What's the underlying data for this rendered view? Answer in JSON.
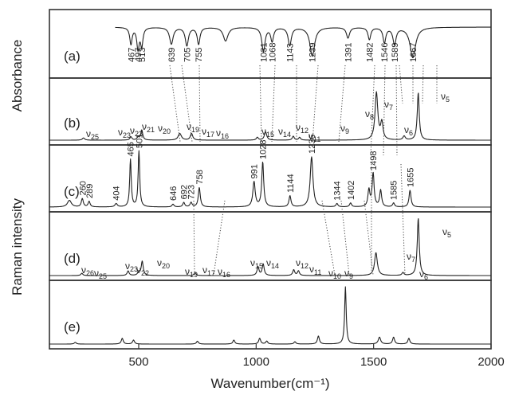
{
  "chart_data": {
    "type": "line",
    "xlabel": "Wavenumber(cm⁻¹)",
    "ylabel_top": "Absorbance",
    "ylabel_bottom": "Raman intensity",
    "xlim": [
      120,
      2000
    ],
    "xticks": [
      500,
      1000,
      1500,
      2000
    ],
    "panels": [
      {
        "id": "a",
        "label": "(a)",
        "kind": "absorbance",
        "peaks": [
          {
            "x": 467,
            "h": 0.55,
            "w": 6,
            "label": "467"
          },
          {
            "x": 497,
            "h": 0.7,
            "w": 6,
            "label": "497"
          },
          {
            "x": 513,
            "h": 0.6,
            "w": 6,
            "label": "513"
          },
          {
            "x": 639,
            "h": 0.55,
            "w": 9,
            "label": "639"
          },
          {
            "x": 705,
            "h": 0.6,
            "w": 8,
            "label": "705"
          },
          {
            "x": 755,
            "h": 0.55,
            "w": 7,
            "label": "755"
          },
          {
            "x": 870,
            "h": 0.45,
            "w": 12,
            "label": ""
          },
          {
            "x": 1031,
            "h": 0.8,
            "w": 8,
            "label": "1031"
          },
          {
            "x": 1068,
            "h": 0.45,
            "w": 7,
            "label": "1068"
          },
          {
            "x": 1143,
            "h": 0.6,
            "w": 8,
            "label": "1143"
          },
          {
            "x": 1239,
            "h": 0.95,
            "w": 12,
            "label": "1239"
          },
          {
            "x": 1391,
            "h": 0.35,
            "w": 8,
            "label": "1391"
          },
          {
            "x": 1482,
            "h": 0.4,
            "w": 7,
            "label": "1482"
          },
          {
            "x": 1546,
            "h": 0.5,
            "w": 7,
            "label": "1546"
          },
          {
            "x": 1589,
            "h": 0.55,
            "w": 8,
            "label": "1589"
          },
          {
            "x": 1667,
            "h": 1.0,
            "w": 14,
            "label": "1667"
          }
        ]
      },
      {
        "id": "b",
        "label": "(b)",
        "kind": "raman",
        "peaks": [
          {
            "x": 265,
            "h": 0.04,
            "w": 6
          },
          {
            "x": 467,
            "h": 0.06,
            "w": 5
          },
          {
            "x": 497,
            "h": 0.05,
            "w": 5
          },
          {
            "x": 513,
            "h": 0.18,
            "w": 5
          },
          {
            "x": 675,
            "h": 0.12,
            "w": 8
          },
          {
            "x": 725,
            "h": 0.12,
            "w": 6
          },
          {
            "x": 1005,
            "h": 0.05,
            "w": 5
          },
          {
            "x": 1040,
            "h": 0.15,
            "w": 6
          },
          {
            "x": 1158,
            "h": 0.07,
            "w": 5
          },
          {
            "x": 1185,
            "h": 0.05,
            "w": 5
          },
          {
            "x": 1512,
            "h": 0.85,
            "w": 7
          },
          {
            "x": 1535,
            "h": 0.3,
            "w": 6
          },
          {
            "x": 1630,
            "h": 0.07,
            "w": 6
          },
          {
            "x": 1690,
            "h": 0.85,
            "w": 5
          }
        ],
        "annotations": [
          "ν25",
          "ν23",
          "ν22",
          "ν21",
          "ν20",
          "ν19",
          "ν17",
          "ν16",
          "ν15",
          "ν14",
          "ν12",
          "ν11",
          "ν9",
          "ν8",
          "ν7",
          "ν6",
          "ν5"
        ]
      },
      {
        "id": "c",
        "label": "(c)",
        "kind": "raman",
        "peaks": [
          {
            "x": 205,
            "h": 0.12,
            "w": 10,
            "label": ""
          },
          {
            "x": 260,
            "h": 0.15,
            "w": 5,
            "label": "260"
          },
          {
            "x": 289,
            "h": 0.1,
            "w": 5,
            "label": "289"
          },
          {
            "x": 404,
            "h": 0.06,
            "w": 6,
            "label": "404"
          },
          {
            "x": 465,
            "h": 0.85,
            "w": 4,
            "label": "465"
          },
          {
            "x": 501,
            "h": 1.0,
            "w": 4,
            "label": "501"
          },
          {
            "x": 646,
            "h": 0.05,
            "w": 5,
            "label": "646"
          },
          {
            "x": 692,
            "h": 0.08,
            "w": 5,
            "label": "692"
          },
          {
            "x": 723,
            "h": 0.08,
            "w": 5,
            "label": "723"
          },
          {
            "x": 758,
            "h": 0.35,
            "w": 5,
            "label": "758"
          },
          {
            "x": 991,
            "h": 0.45,
            "w": 6,
            "label": "991"
          },
          {
            "x": 1028,
            "h": 0.8,
            "w": 5,
            "label": "1028"
          },
          {
            "x": 1144,
            "h": 0.2,
            "w": 5,
            "label": "1144"
          },
          {
            "x": 1236,
            "h": 0.9,
            "w": 7,
            "label": "1236"
          },
          {
            "x": 1344,
            "h": 0.06,
            "w": 5,
            "label": "1344"
          },
          {
            "x": 1402,
            "h": 0.07,
            "w": 5,
            "label": "1402"
          },
          {
            "x": 1480,
            "h": 0.3,
            "w": 5,
            "label": ""
          },
          {
            "x": 1498,
            "h": 0.6,
            "w": 5,
            "label": "1498"
          },
          {
            "x": 1530,
            "h": 0.3,
            "w": 5,
            "label": ""
          },
          {
            "x": 1585,
            "h": 0.07,
            "w": 5,
            "label": "1585"
          },
          {
            "x": 1655,
            "h": 0.3,
            "w": 5,
            "label": "1655"
          }
        ]
      },
      {
        "id": "d",
        "label": "(d)",
        "kind": "raman",
        "peaks": [
          {
            "x": 258,
            "h": 0.04,
            "w": 5
          },
          {
            "x": 455,
            "h": 0.08,
            "w": 5
          },
          {
            "x": 500,
            "h": 0.06,
            "w": 5
          },
          {
            "x": 515,
            "h": 0.25,
            "w": 5
          },
          {
            "x": 740,
            "h": 0.05,
            "w": 5
          },
          {
            "x": 1008,
            "h": 0.15,
            "w": 5
          },
          {
            "x": 1030,
            "h": 0.2,
            "w": 5
          },
          {
            "x": 1160,
            "h": 0.1,
            "w": 5
          },
          {
            "x": 1180,
            "h": 0.08,
            "w": 5
          },
          {
            "x": 1510,
            "h": 0.4,
            "w": 7
          },
          {
            "x": 1625,
            "h": 0.05,
            "w": 5
          },
          {
            "x": 1690,
            "h": 1.0,
            "w": 5
          }
        ],
        "annotations": [
          "ν26",
          "ν25",
          "ν23",
          "ν22",
          "ν20",
          "ν19",
          "ν17",
          "ν16",
          "ν15",
          "ν14",
          "ν12",
          "ν11",
          "ν10",
          "ν9",
          "ν7",
          "ν6",
          "ν5"
        ]
      },
      {
        "id": "e",
        "label": "(e)",
        "kind": "raman",
        "peaks": [
          {
            "x": 230,
            "h": 0.03,
            "w": 5
          },
          {
            "x": 430,
            "h": 0.1,
            "w": 5
          },
          {
            "x": 478,
            "h": 0.07,
            "w": 5
          },
          {
            "x": 750,
            "h": 0.05,
            "w": 5
          },
          {
            "x": 905,
            "h": 0.07,
            "w": 5
          },
          {
            "x": 1015,
            "h": 0.1,
            "w": 5
          },
          {
            "x": 1045,
            "h": 0.05,
            "w": 5
          },
          {
            "x": 1165,
            "h": 0.04,
            "w": 5
          },
          {
            "x": 1265,
            "h": 0.14,
            "w": 5
          },
          {
            "x": 1380,
            "h": 1.0,
            "w": 4
          },
          {
            "x": 1525,
            "h": 0.12,
            "w": 6
          },
          {
            "x": 1585,
            "h": 0.12,
            "w": 5
          },
          {
            "x": 1650,
            "h": 0.1,
            "w": 5
          }
        ]
      }
    ]
  }
}
